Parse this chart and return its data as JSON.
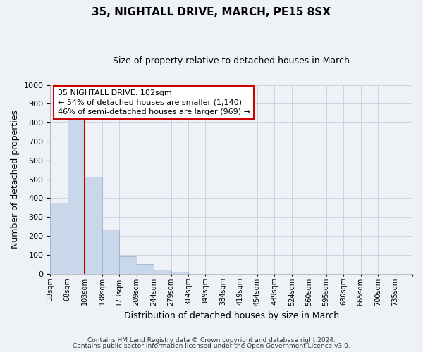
{
  "title": "35, NIGHTALL DRIVE, MARCH, PE15 8SX",
  "subtitle": "Size of property relative to detached houses in March",
  "xlabel": "Distribution of detached houses by size in March",
  "ylabel": "Number of detached properties",
  "bar_labels": [
    "33sqm",
    "68sqm",
    "103sqm",
    "138sqm",
    "173sqm",
    "209sqm",
    "244sqm",
    "279sqm",
    "314sqm",
    "349sqm",
    "384sqm",
    "419sqm",
    "454sqm",
    "489sqm",
    "524sqm",
    "560sqm",
    "595sqm",
    "630sqm",
    "665sqm",
    "700sqm",
    "735sqm"
  ],
  "bar_values": [
    375,
    820,
    515,
    235,
    92,
    52,
    22,
    12,
    0,
    0,
    0,
    0,
    0,
    0,
    0,
    0,
    0,
    0,
    0,
    0,
    0
  ],
  "bar_color": "#c8d8ea",
  "bar_edge_color": "#9ab4cc",
  "grid_color": "#c8d4e0",
  "property_line_color": "#cc0000",
  "annotation_text_line1": "35 NIGHTALL DRIVE: 102sqm",
  "annotation_text_line2": "← 54% of detached houses are smaller (1,140)",
  "annotation_text_line3": "46% of semi-detached houses are larger (969) →",
  "ylim": [
    0,
    1000
  ],
  "yticks": [
    0,
    100,
    200,
    300,
    400,
    500,
    600,
    700,
    800,
    900,
    1000
  ],
  "footer_line1": "Contains HM Land Registry data © Crown copyright and database right 2024.",
  "footer_line2": "Contains public sector information licensed under the Open Government Licence v3.0.",
  "background_color": "#eef2f7",
  "plot_bg_color": "#eef2f7",
  "title_fontsize": 11,
  "subtitle_fontsize": 9
}
